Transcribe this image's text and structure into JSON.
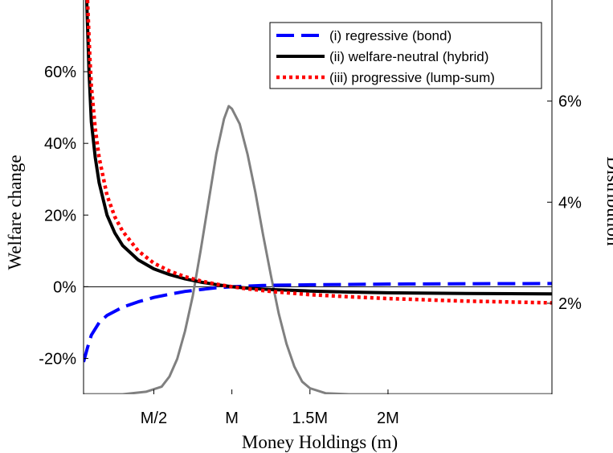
{
  "chart_data": {
    "type": "line",
    "xlabel": "Money Holdings (m)",
    "ylabel_left": "Welfare change",
    "ylabel_right": "Distribution",
    "x_ticks": [
      {
        "value": 0.5,
        "label": "M/2"
      },
      {
        "value": 1.0,
        "label": "M"
      },
      {
        "value": 1.5,
        "label": "1.5M"
      },
      {
        "value": 2.0,
        "label": "2M"
      }
    ],
    "xlim": [
      0.05,
      3.05
    ],
    "ylim_left": [
      -30,
      80
    ],
    "y_ticks_left": [
      {
        "value": -20,
        "label": "-20%"
      },
      {
        "value": 0,
        "label": "0%"
      },
      {
        "value": 20,
        "label": "20%"
      },
      {
        "value": 40,
        "label": "40%"
      },
      {
        "value": 60,
        "label": "60%"
      }
    ],
    "ylim_right": [
      0.2,
      8.0
    ],
    "y_ticks_right": [
      {
        "value": 2,
        "label": "2%"
      },
      {
        "value": 4,
        "label": "4%"
      },
      {
        "value": 6,
        "label": "6%"
      }
    ],
    "zero_line": true,
    "legend_position": "top-right",
    "series": [
      {
        "name": "(i) regressive (bond)",
        "axis": "left",
        "color": "#0000ff",
        "style": "dashed",
        "x": [
          0.05,
          0.075,
          0.1,
          0.15,
          0.2,
          0.3,
          0.4,
          0.5,
          0.6,
          0.7,
          0.8,
          0.9,
          1.0,
          1.1,
          1.2,
          1.3,
          1.5,
          1.75,
          2.0,
          2.5,
          3.05
        ],
        "y": [
          -21.0,
          -17.0,
          -13.5,
          -10.0,
          -8.0,
          -5.7,
          -4.2,
          -3.0,
          -2.1,
          -1.3,
          -0.8,
          -0.3,
          0.0,
          0.2,
          0.35,
          0.45,
          0.55,
          0.65,
          0.75,
          0.85,
          0.9
        ]
      },
      {
        "name": "(ii) welfare-neutral (hybrid)",
        "axis": "left",
        "color": "#000000",
        "style": "solid",
        "x": [
          0.07,
          0.085,
          0.1,
          0.125,
          0.15,
          0.2,
          0.25,
          0.3,
          0.4,
          0.5,
          0.6,
          0.7,
          0.8,
          0.9,
          1.0,
          1.1,
          1.25,
          1.5,
          1.75,
          2.0,
          2.5,
          3.05
        ],
        "y": [
          80.0,
          60.0,
          46.0,
          36.0,
          29.0,
          20.0,
          15.0,
          11.5,
          7.5,
          5.0,
          3.4,
          2.2,
          1.3,
          0.6,
          0.0,
          -0.4,
          -0.8,
          -1.2,
          -1.5,
          -1.7,
          -1.9,
          -2.0
        ]
      },
      {
        "name": "(iii) progressive (lump-sum)",
        "axis": "left",
        "color": "#ff0000",
        "style": "dotted",
        "x": [
          0.075,
          0.09,
          0.1,
          0.125,
          0.15,
          0.2,
          0.25,
          0.3,
          0.4,
          0.5,
          0.6,
          0.7,
          0.8,
          0.9,
          1.0,
          1.1,
          1.25,
          1.5,
          1.75,
          2.0,
          2.5,
          3.05
        ],
        "y": [
          80.0,
          64.0,
          56.0,
          44.0,
          36.0,
          25.5,
          19.5,
          15.5,
          10.0,
          6.6,
          4.4,
          2.8,
          1.6,
          0.7,
          0.0,
          -0.6,
          -1.3,
          -2.2,
          -2.8,
          -3.3,
          -4.0,
          -4.5
        ]
      },
      {
        "name": "",
        "axis": "right",
        "color": "#808080",
        "style": "solid",
        "x": [
          0.05,
          0.3,
          0.45,
          0.55,
          0.6,
          0.65,
          0.7,
          0.75,
          0.8,
          0.85,
          0.9,
          0.95,
          0.98,
          1.0,
          1.05,
          1.1,
          1.15,
          1.2,
          1.25,
          1.3,
          1.35,
          1.4,
          1.45,
          1.5,
          1.6,
          1.75,
          2.0,
          3.05
        ],
        "y": [
          0.2,
          0.2,
          0.25,
          0.35,
          0.55,
          0.9,
          1.45,
          2.15,
          3.05,
          4.0,
          4.95,
          5.65,
          5.9,
          5.85,
          5.55,
          4.95,
          4.2,
          3.35,
          2.55,
          1.8,
          1.2,
          0.75,
          0.45,
          0.32,
          0.22,
          0.2,
          0.2,
          0.2
        ]
      }
    ]
  }
}
